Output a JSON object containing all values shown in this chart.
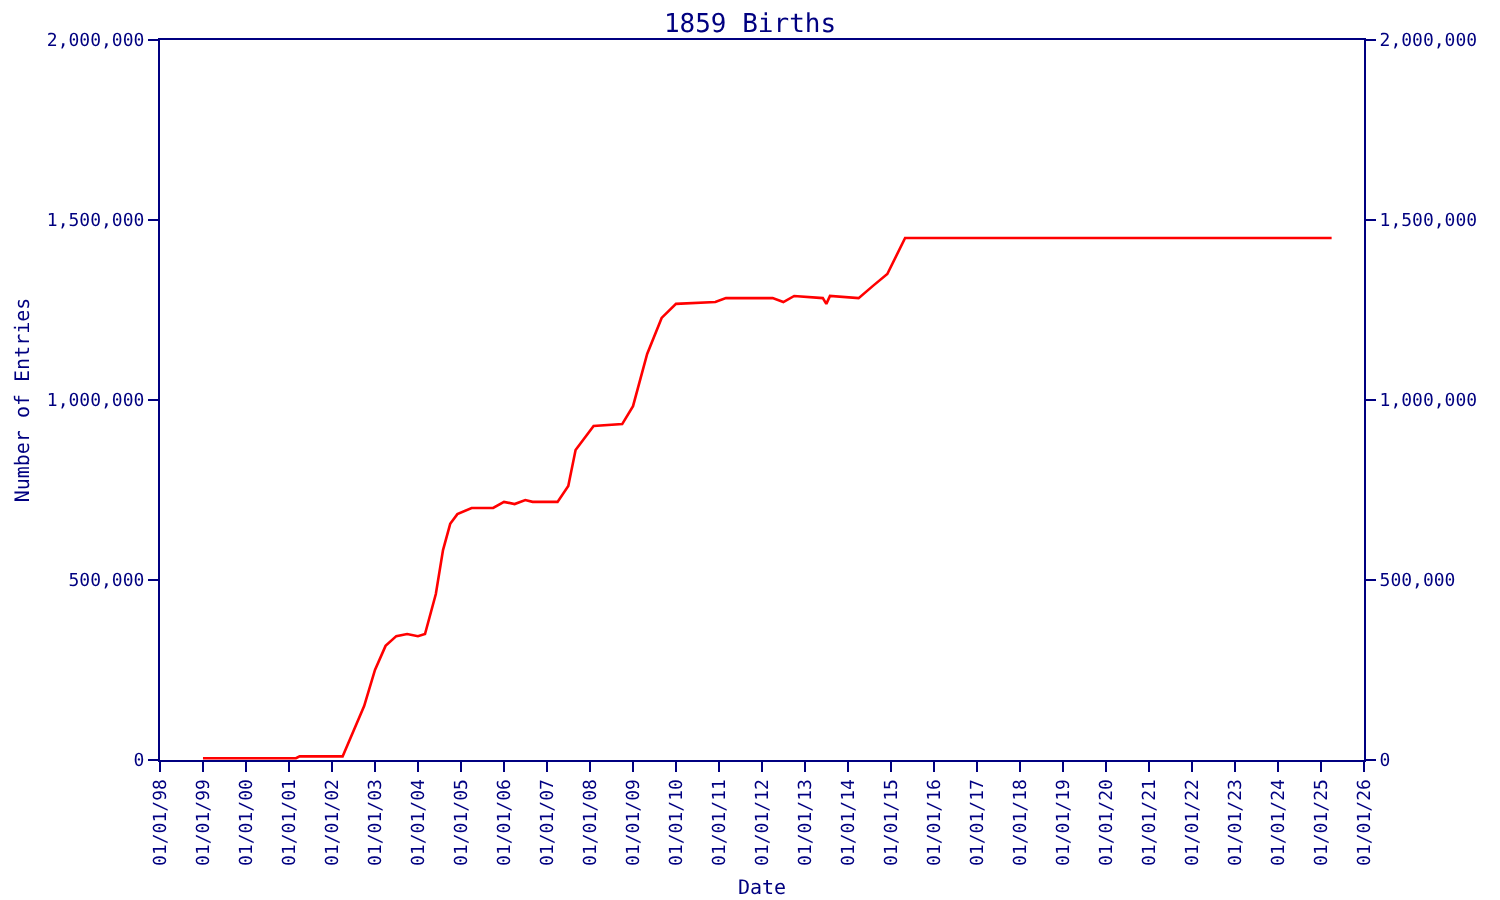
{
  "chart_data": {
    "type": "line",
    "title": "1859 Births",
    "xlabel": "Date",
    "ylabel": "Number of Entries",
    "x": [
      "1999-01",
      "2001-03",
      "2001-04",
      "2002-04",
      "2002-10",
      "2003-01",
      "2003-04",
      "2003-07",
      "2003-10",
      "2004-01",
      "2004-03",
      "2004-06",
      "2004-08",
      "2004-10",
      "2004-12",
      "2005-04",
      "2005-10",
      "2006-01",
      "2006-04",
      "2006-07",
      "2006-09",
      "2007-04",
      "2007-07",
      "2007-09",
      "2008-02",
      "2008-10",
      "2009-01",
      "2009-05",
      "2009-09",
      "2010-01",
      "2010-12",
      "2011-03",
      "2012-04",
      "2012-07",
      "2012-10",
      "2013-06",
      "2013-07",
      "2013-08",
      "2014-04",
      "2014-08",
      "2014-12",
      "2015-05",
      "2025-04"
    ],
    "series": [
      {
        "color": "#ff0000",
        "values": [
          5000,
          5000,
          10000,
          10000,
          150000,
          250000,
          317000,
          344000,
          350000,
          344000,
          350000,
          461000,
          583000,
          656000,
          683000,
          700000,
          700000,
          717000,
          711000,
          722000,
          717000,
          717000,
          761000,
          861000,
          928000,
          933000,
          983000,
          1128000,
          1228000,
          1267000,
          1272000,
          1283000,
          1283000,
          1272000,
          1289000,
          1283000,
          1267000,
          1289000,
          1283000,
          1317000,
          1350000,
          1450000,
          1450000
        ]
      }
    ],
    "xlim": [
      "1998-01-01",
      "2026-01-01"
    ],
    "xticks": [
      {
        "value": "1998-01-01",
        "label": "01/01/98"
      },
      {
        "value": "1999-01-01",
        "label": "01/01/99"
      },
      {
        "value": "2000-01-01",
        "label": "01/01/00"
      },
      {
        "value": "2001-01-01",
        "label": "01/01/01"
      },
      {
        "value": "2002-01-01",
        "label": "01/01/02"
      },
      {
        "value": "2003-01-01",
        "label": "01/01/03"
      },
      {
        "value": "2004-01-01",
        "label": "01/01/04"
      },
      {
        "value": "2005-01-01",
        "label": "01/01/05"
      },
      {
        "value": "2006-01-01",
        "label": "01/01/06"
      },
      {
        "value": "2007-01-01",
        "label": "01/01/07"
      },
      {
        "value": "2008-01-01",
        "label": "01/01/08"
      },
      {
        "value": "2009-01-01",
        "label": "01/01/09"
      },
      {
        "value": "2010-01-01",
        "label": "01/01/10"
      },
      {
        "value": "2011-01-01",
        "label": "01/01/11"
      },
      {
        "value": "2012-01-01",
        "label": "01/01/12"
      },
      {
        "value": "2013-01-01",
        "label": "01/01/13"
      },
      {
        "value": "2014-01-01",
        "label": "01/01/14"
      },
      {
        "value": "2015-01-01",
        "label": "01/01/15"
      },
      {
        "value": "2016-01-01",
        "label": "01/01/16"
      },
      {
        "value": "2017-01-01",
        "label": "01/01/17"
      },
      {
        "value": "2018-01-01",
        "label": "01/01/18"
      },
      {
        "value": "2019-01-01",
        "label": "01/01/19"
      },
      {
        "value": "2020-01-01",
        "label": "01/01/20"
      },
      {
        "value": "2021-01-01",
        "label": "01/01/21"
      },
      {
        "value": "2022-01-01",
        "label": "01/01/22"
      },
      {
        "value": "2023-01-01",
        "label": "01/01/23"
      },
      {
        "value": "2024-01-01",
        "label": "01/01/24"
      },
      {
        "value": "2025-01-01",
        "label": "01/01/25"
      },
      {
        "value": "2026-01-01",
        "label": "01/01/26"
      }
    ],
    "ylim": [
      0,
      2000000
    ],
    "yticks": [
      0,
      {
        "value": 500000,
        "label": "500,000"
      },
      {
        "value": 1000000,
        "label": "1,000,000"
      },
      {
        "value": 1500000,
        "label": "1,500,000"
      },
      {
        "value": 2000000,
        "label": "2,000,000"
      }
    ],
    "y2lim": [
      0,
      2000000
    ],
    "y2ticks": [
      0,
      {
        "value": 500000,
        "label": "500,000"
      },
      {
        "value": 1000000,
        "label": "1,000,000"
      },
      {
        "value": 1500000,
        "label": "1,500,000"
      },
      {
        "value": 2000000,
        "label": "2,000,000"
      }
    ],
    "grid": false,
    "marker": "none",
    "line_style": "solid"
  }
}
